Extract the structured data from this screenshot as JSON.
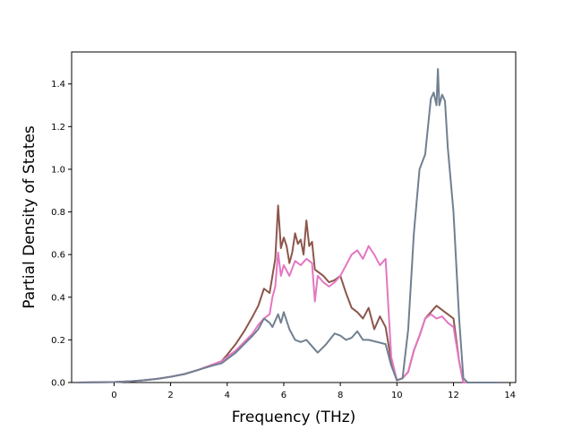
{
  "chart_data": {
    "type": "line",
    "title": "",
    "xlabel": "Frequency (THz)",
    "ylabel": "Partial Density of States",
    "xlim": [
      -1.5,
      14.2
    ],
    "ylim": [
      0.0,
      1.55
    ],
    "xticks": [
      0,
      2,
      4,
      6,
      8,
      10,
      12,
      14
    ],
    "yticks": [
      0.0,
      0.2,
      0.4,
      0.6,
      0.8,
      1.0,
      1.2,
      1.4
    ],
    "xtick_labels": [
      "0",
      "2",
      "4",
      "6",
      "8",
      "10",
      "12",
      "14"
    ],
    "ytick_labels": [
      "0.0",
      "0.2",
      "0.4",
      "0.6",
      "0.8",
      "1.0",
      "1.2",
      "1.4"
    ],
    "grid": false,
    "legend": false,
    "series": [
      {
        "color": "#8c564b",
        "x": [
          -1.3,
          0.0,
          0.5,
          1.0,
          1.5,
          2.0,
          2.5,
          3.0,
          3.5,
          3.8,
          4.0,
          4.3,
          4.6,
          4.9,
          5.1,
          5.3,
          5.5,
          5.6,
          5.7,
          5.8,
          5.9,
          6.0,
          6.1,
          6.2,
          6.3,
          6.4,
          6.5,
          6.6,
          6.7,
          6.8,
          6.9,
          7.0,
          7.1,
          7.2,
          7.4,
          7.6,
          7.8,
          8.0,
          8.2,
          8.4,
          8.6,
          8.8,
          9.0,
          9.2,
          9.4,
          9.6,
          9.8,
          10.0,
          10.2,
          10.4,
          10.6,
          10.8,
          11.0,
          11.2,
          11.4,
          11.6,
          11.8,
          12.0,
          12.2,
          12.35,
          12.5,
          13.6
        ],
        "y": [
          0.0,
          0.002,
          0.005,
          0.01,
          0.017,
          0.027,
          0.04,
          0.06,
          0.085,
          0.1,
          0.13,
          0.18,
          0.24,
          0.31,
          0.36,
          0.44,
          0.42,
          0.5,
          0.58,
          0.83,
          0.63,
          0.68,
          0.64,
          0.56,
          0.61,
          0.7,
          0.65,
          0.67,
          0.6,
          0.76,
          0.64,
          0.66,
          0.53,
          0.52,
          0.5,
          0.47,
          0.48,
          0.5,
          0.42,
          0.35,
          0.33,
          0.3,
          0.35,
          0.25,
          0.31,
          0.26,
          0.1,
          0.01,
          0.02,
          0.05,
          0.15,
          0.22,
          0.3,
          0.33,
          0.36,
          0.34,
          0.32,
          0.3,
          0.1,
          0.0,
          0.0,
          0.0
        ]
      },
      {
        "color": "#e377c2",
        "x": [
          -1.3,
          0.0,
          0.5,
          1.0,
          1.5,
          2.0,
          2.5,
          3.0,
          3.5,
          3.8,
          4.0,
          4.3,
          4.6,
          4.9,
          5.1,
          5.3,
          5.5,
          5.6,
          5.7,
          5.8,
          5.9,
          6.0,
          6.2,
          6.4,
          6.6,
          6.8,
          7.0,
          7.1,
          7.2,
          7.4,
          7.6,
          7.8,
          8.0,
          8.2,
          8.4,
          8.6,
          8.8,
          9.0,
          9.2,
          9.4,
          9.6,
          9.8,
          10.0,
          10.2,
          10.4,
          10.6,
          10.8,
          11.0,
          11.2,
          11.4,
          11.6,
          11.8,
          12.0,
          12.2,
          12.35,
          12.5,
          13.6
        ],
        "y": [
          0.0,
          0.002,
          0.005,
          0.01,
          0.017,
          0.027,
          0.04,
          0.06,
          0.085,
          0.1,
          0.12,
          0.15,
          0.19,
          0.23,
          0.27,
          0.3,
          0.32,
          0.4,
          0.45,
          0.61,
          0.5,
          0.55,
          0.5,
          0.57,
          0.55,
          0.58,
          0.56,
          0.38,
          0.5,
          0.47,
          0.45,
          0.47,
          0.5,
          0.55,
          0.6,
          0.62,
          0.58,
          0.64,
          0.6,
          0.55,
          0.58,
          0.12,
          0.01,
          0.02,
          0.05,
          0.15,
          0.22,
          0.3,
          0.32,
          0.3,
          0.31,
          0.28,
          0.26,
          0.1,
          0.0,
          0.0,
          0.0
        ]
      },
      {
        "color": "#708090",
        "x": [
          -1.3,
          0.0,
          0.5,
          1.0,
          1.5,
          2.0,
          2.5,
          3.0,
          3.5,
          3.8,
          4.0,
          4.3,
          4.6,
          4.9,
          5.1,
          5.3,
          5.5,
          5.6,
          5.8,
          5.9,
          6.0,
          6.2,
          6.4,
          6.6,
          6.8,
          7.0,
          7.2,
          7.5,
          7.8,
          8.0,
          8.2,
          8.4,
          8.6,
          8.8,
          9.0,
          9.3,
          9.6,
          9.8,
          10.0,
          10.2,
          10.4,
          10.6,
          10.8,
          11.0,
          11.1,
          11.2,
          11.3,
          11.4,
          11.45,
          11.5,
          11.6,
          11.7,
          11.8,
          12.0,
          12.2,
          12.35,
          12.5,
          13.6
        ],
        "y": [
          0.0,
          0.002,
          0.005,
          0.01,
          0.017,
          0.027,
          0.04,
          0.06,
          0.08,
          0.09,
          0.11,
          0.14,
          0.18,
          0.22,
          0.25,
          0.3,
          0.28,
          0.26,
          0.32,
          0.28,
          0.33,
          0.25,
          0.2,
          0.19,
          0.2,
          0.17,
          0.14,
          0.18,
          0.23,
          0.22,
          0.2,
          0.21,
          0.24,
          0.2,
          0.2,
          0.19,
          0.18,
          0.08,
          0.01,
          0.02,
          0.25,
          0.7,
          1.0,
          1.07,
          1.2,
          1.33,
          1.36,
          1.3,
          1.47,
          1.3,
          1.35,
          1.32,
          1.1,
          0.8,
          0.3,
          0.02,
          0.0,
          0.0
        ]
      }
    ]
  }
}
